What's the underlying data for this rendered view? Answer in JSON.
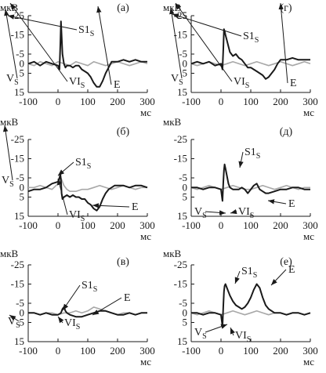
{
  "chart_data": [
    {
      "panel": "(а)",
      "type": "line",
      "ylabel": "мкВ",
      "xlabel": "мс",
      "xlim": [
        -100,
        300
      ],
      "ylim": [
        15,
        -25
      ],
      "xticks": [
        "-100",
        "0",
        "100",
        "200",
        "300"
      ],
      "yticks": [
        "-25",
        "-15",
        "-5",
        "0",
        "5",
        "15"
      ],
      "series": [
        {
          "color": "#1a1a1a",
          "x": [
            -100,
            -80,
            -60,
            -40,
            -20,
            0,
            5,
            8,
            10,
            12,
            15,
            20,
            25,
            30,
            40,
            50,
            60,
            70,
            80,
            90,
            100,
            110,
            120,
            130,
            140,
            150,
            160,
            170,
            180,
            190,
            200,
            220,
            240,
            260,
            280,
            300
          ],
          "y": [
            0,
            -1,
            1,
            -1,
            0,
            1,
            3,
            -10,
            -22,
            -15,
            -5,
            0,
            2,
            1,
            1,
            2,
            1,
            1,
            3,
            4,
            5,
            7,
            10,
            12,
            12,
            9,
            5,
            2,
            -1,
            -1,
            -1,
            -2,
            -1,
            -2,
            -1,
            -1
          ]
        },
        {
          "color": "#a8a8a8",
          "x": [
            -100,
            -80,
            -60,
            -40,
            -20,
            0,
            20,
            40,
            60,
            80,
            100,
            120,
            140,
            160,
            180,
            200,
            220,
            240,
            260,
            280,
            300
          ],
          "y": [
            0,
            1,
            -1,
            0,
            1,
            -1,
            0,
            1,
            -1,
            0,
            1,
            -1,
            0,
            1,
            0,
            -1,
            0,
            1,
            0,
            -1,
            0
          ]
        }
      ],
      "annotations": [
        {
          "text": "S1",
          "sub": "S"
        },
        {
          "text": "V",
          "sub": "S"
        },
        {
          "text": "VI",
          "sub": "S"
        },
        {
          "text": "E",
          "sub": ""
        }
      ]
    },
    {
      "panel": "(г)",
      "type": "line",
      "ylabel": "мкВ",
      "xlabel": "мс",
      "xlim": [
        -100,
        300
      ],
      "ylim": [
        15,
        -25
      ],
      "xticks": [
        "-100",
        "0",
        "100",
        "200",
        "300"
      ],
      "yticks": [
        "-25",
        "-15",
        "-5",
        "0",
        "5",
        "15"
      ],
      "series": [
        {
          "color": "#1a1a1a",
          "x": [
            -100,
            -80,
            -60,
            -40,
            -20,
            0,
            5,
            8,
            10,
            12,
            15,
            20,
            25,
            30,
            40,
            50,
            60,
            70,
            80,
            90,
            100,
            110,
            120,
            130,
            140,
            150,
            160,
            170,
            180,
            190,
            200,
            220,
            240,
            260,
            280,
            300
          ],
          "y": [
            0,
            -1,
            0,
            -1,
            1,
            0,
            3,
            -8,
            -18,
            -17,
            -15,
            -12,
            -9,
            -6,
            -4,
            -5,
            -3,
            -2,
            0,
            2,
            2,
            3,
            4,
            5,
            6,
            8,
            7,
            5,
            3,
            0,
            -2,
            -2,
            -3,
            -2,
            -2,
            -2
          ]
        },
        {
          "color": "#a8a8a8",
          "x": [
            -100,
            -80,
            -60,
            -40,
            -20,
            0,
            20,
            40,
            60,
            80,
            100,
            120,
            140,
            160,
            180,
            200,
            220,
            240,
            260,
            280,
            300
          ],
          "y": [
            0,
            1,
            0,
            -1,
            0,
            1,
            0,
            -1,
            0,
            1,
            0,
            -1,
            0,
            1,
            0,
            -1,
            0,
            1,
            0,
            -1,
            0
          ]
        }
      ],
      "annotations": [
        {
          "text": "S1",
          "sub": "S"
        },
        {
          "text": "V",
          "sub": "S"
        },
        {
          "text": "VI",
          "sub": "S"
        },
        {
          "text": "E",
          "sub": ""
        }
      ]
    },
    {
      "panel": "(б)",
      "type": "line",
      "ylabel": "мкВ",
      "xlabel": "мс",
      "xlim": [
        -100,
        300
      ],
      "ylim": [
        15,
        -25
      ],
      "xticks": [
        "-100",
        "0",
        "100",
        "200",
        "300"
      ],
      "yticks": [
        "-25",
        "-15",
        "-5",
        "0",
        "5",
        "15"
      ],
      "series": [
        {
          "color": "#1a1a1a",
          "x": [
            -100,
            -80,
            -60,
            -40,
            -20,
            0,
            5,
            8,
            10,
            12,
            15,
            20,
            30,
            40,
            50,
            60,
            70,
            80,
            90,
            100,
            110,
            120,
            130,
            140,
            150,
            160,
            170,
            180,
            190,
            200,
            220,
            240,
            260,
            280,
            300
          ],
          "y": [
            2,
            1,
            1,
            0,
            -2,
            -3,
            -5,
            -7,
            -4,
            3,
            6,
            5,
            4,
            5,
            4,
            5,
            5,
            6,
            6,
            8,
            9,
            11,
            12,
            10,
            6,
            3,
            1,
            0,
            -1,
            -1,
            -1,
            0,
            -1,
            -1,
            0
          ]
        },
        {
          "color": "#a8a8a8",
          "x": [
            -100,
            -80,
            -60,
            -40,
            -20,
            0,
            10,
            20,
            30,
            40,
            60,
            80,
            100,
            120,
            140,
            160,
            180,
            200,
            220,
            240,
            260,
            280,
            300
          ],
          "y": [
            0,
            0,
            -1,
            0,
            1,
            -2,
            -5,
            -1,
            1,
            2,
            2,
            1,
            1,
            0,
            -1,
            0,
            1,
            0,
            -1,
            0,
            1,
            0,
            0
          ]
        }
      ],
      "annotations": [
        {
          "text": "S1",
          "sub": "S"
        },
        {
          "text": "V",
          "sub": "S"
        },
        {
          "text": "VI",
          "sub": "S"
        },
        {
          "text": "E",
          "sub": ""
        }
      ]
    },
    {
      "panel": "(д)",
      "type": "line",
      "ylabel": "мкВ",
      "xlabel": "мс",
      "xlim": [
        -100,
        300
      ],
      "ylim": [
        15,
        -25
      ],
      "xticks": [
        "-100",
        "0",
        "100",
        "200",
        "300"
      ],
      "yticks": [
        "-25",
        "-15",
        "-5",
        "0",
        "5",
        "15"
      ],
      "series": [
        {
          "color": "#1a1a1a",
          "x": [
            -100,
            -80,
            -60,
            -40,
            -20,
            0,
            5,
            8,
            10,
            12,
            15,
            20,
            25,
            30,
            40,
            50,
            60,
            70,
            80,
            90,
            100,
            110,
            120,
            130,
            140,
            150,
            160,
            180,
            200,
            220,
            240,
            260,
            280,
            300
          ],
          "y": [
            0,
            0,
            1,
            0,
            0,
            1,
            7,
            -3,
            -9,
            -12,
            -10,
            -6,
            -2,
            0,
            1,
            1,
            1,
            0,
            1,
            3,
            1,
            -1,
            -2,
            1,
            2,
            3,
            3,
            2,
            1,
            1,
            0,
            0,
            1,
            1
          ]
        },
        {
          "color": "#a8a8a8",
          "x": [
            -100,
            -80,
            -60,
            -40,
            -20,
            0,
            20,
            40,
            60,
            80,
            100,
            120,
            140,
            160,
            180,
            200,
            220,
            240,
            260,
            280,
            300
          ],
          "y": [
            0,
            1,
            0,
            -1,
            0,
            1,
            0,
            -1,
            0,
            1,
            1,
            0,
            -1,
            0,
            1,
            0,
            -1,
            0,
            1,
            0,
            0
          ]
        }
      ],
      "annotations": [
        {
          "text": "S1",
          "sub": "S"
        },
        {
          "text": "V",
          "sub": "S"
        },
        {
          "text": "VI",
          "sub": "S"
        },
        {
          "text": "E",
          "sub": ""
        }
      ]
    },
    {
      "panel": "(в)",
      "type": "line",
      "ylabel": "мкВ",
      "xlabel": "мс",
      "xlim": [
        -100,
        300
      ],
      "ylim": [
        15,
        -25
      ],
      "xticks": [
        "-100",
        "0",
        "100",
        "200",
        "300"
      ],
      "yticks": [
        "-25",
        "-15",
        "-5",
        "0",
        "5",
        "15"
      ],
      "series": [
        {
          "color": "#1a1a1a",
          "x": [
            -100,
            -80,
            -60,
            -40,
            -20,
            0,
            10,
            15,
            20,
            25,
            30,
            40,
            60,
            80,
            100,
            120,
            140,
            160,
            180,
            200,
            220,
            240,
            260,
            280,
            300
          ],
          "y": [
            0,
            0,
            1,
            0,
            1,
            1,
            0,
            -2,
            -3,
            -1,
            0,
            1,
            2,
            2,
            1,
            0,
            -1,
            -1,
            0,
            1,
            1,
            0,
            1,
            0,
            0
          ]
        },
        {
          "color": "#a8a8a8",
          "x": [
            -100,
            -80,
            -60,
            -40,
            -20,
            0,
            20,
            40,
            60,
            80,
            100,
            120,
            140,
            160,
            180,
            200,
            220,
            240,
            260,
            280,
            300
          ],
          "y": [
            0,
            0,
            1,
            0,
            0,
            1,
            0,
            0,
            -1,
            0,
            -1,
            -3,
            -2,
            -1,
            0,
            1,
            0,
            0,
            1,
            0,
            0
          ]
        }
      ],
      "annotations": [
        {
          "text": "S1",
          "sub": "S"
        },
        {
          "text": "V",
          "sub": "S"
        },
        {
          "text": "VI",
          "sub": "S"
        },
        {
          "text": "E",
          "sub": ""
        }
      ]
    },
    {
      "panel": "(е)",
      "type": "line",
      "ylabel": "мкВ",
      "xlabel": "мс",
      "xlim": [
        -100,
        300
      ],
      "ylim": [
        15,
        -25
      ],
      "xticks": [
        "-100",
        "0",
        "100",
        "200",
        "300"
      ],
      "yticks": [
        "-25",
        "-15",
        "-5",
        "0",
        "5",
        "15"
      ],
      "series": [
        {
          "color": "#1a1a1a",
          "x": [
            -100,
            -80,
            -60,
            -40,
            -20,
            0,
            5,
            8,
            10,
            12,
            15,
            20,
            25,
            30,
            40,
            50,
            60,
            70,
            80,
            90,
            100,
            110,
            120,
            130,
            140,
            150,
            160,
            170,
            180,
            200,
            220,
            240,
            260,
            280,
            300
          ],
          "y": [
            0,
            0,
            1,
            0,
            0,
            1,
            7,
            -4,
            -11,
            -14,
            -15,
            -13,
            -11,
            -9,
            -6,
            -4,
            -3,
            -2,
            -3,
            -5,
            -8,
            -12,
            -15,
            -13,
            -8,
            -4,
            -2,
            -1,
            0,
            0,
            1,
            0,
            0,
            1,
            0
          ]
        },
        {
          "color": "#a8a8a8",
          "x": [
            -100,
            -80,
            -60,
            -40,
            -20,
            0,
            20,
            40,
            60,
            80,
            100,
            120,
            140,
            160,
            180,
            200,
            220,
            240,
            260,
            280,
            300
          ],
          "y": [
            0,
            1,
            0,
            -1,
            0,
            1,
            0,
            -1,
            0,
            1,
            0,
            -1,
            0,
            1,
            0,
            0,
            1,
            0,
            0,
            1,
            0
          ]
        }
      ],
      "annotations": [
        {
          "text": "S1",
          "sub": "S"
        },
        {
          "text": "V",
          "sub": "S"
        },
        {
          "text": "VI",
          "sub": "S"
        },
        {
          "text": "E",
          "sub": ""
        }
      ]
    }
  ]
}
